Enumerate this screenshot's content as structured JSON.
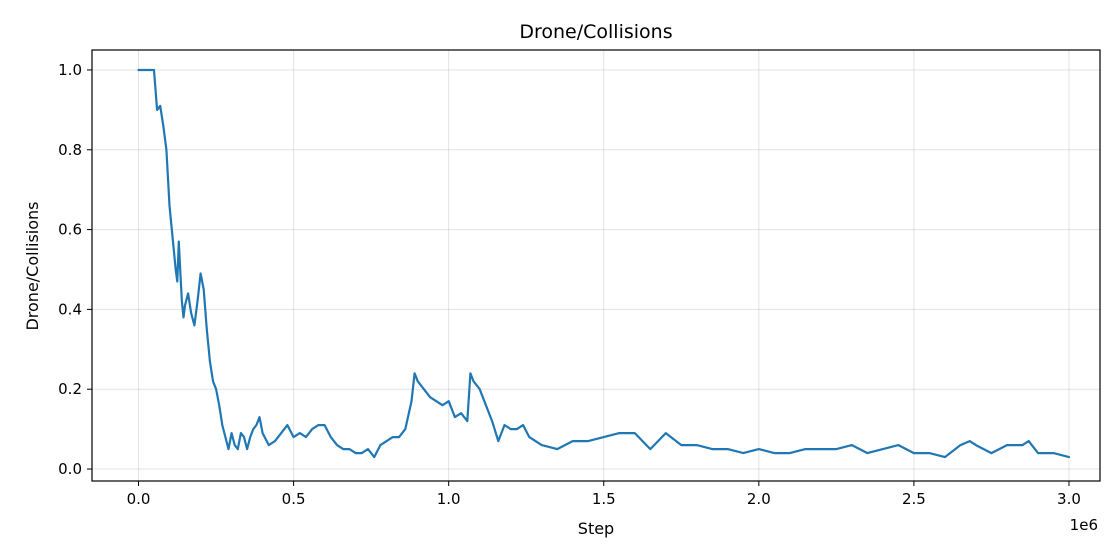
{
  "chart_data": {
    "type": "line",
    "title": "Drone/Collisions",
    "xlabel": "Step",
    "ylabel": "Drone/Collisions",
    "x_offset_label": "1e6",
    "xlim": [
      -0.15,
      3.1
    ],
    "ylim": [
      -0.03,
      1.05
    ],
    "xticks": [
      0.0,
      0.5,
      1.0,
      1.5,
      2.0,
      2.5,
      3.0
    ],
    "xtick_labels": [
      "0.0",
      "0.5",
      "1.0",
      "1.5",
      "2.0",
      "2.5",
      "3.0"
    ],
    "yticks": [
      0.0,
      0.2,
      0.4,
      0.6,
      0.8,
      1.0
    ],
    "ytick_labels": [
      "0.0",
      "0.2",
      "0.4",
      "0.6",
      "0.8",
      "1.0"
    ],
    "grid": true,
    "colors": {
      "series": "#1f77b4"
    },
    "series": [
      {
        "x": [
          0.0,
          0.02,
          0.04,
          0.05,
          0.06,
          0.07,
          0.08,
          0.09,
          0.1,
          0.11,
          0.12,
          0.125,
          0.13,
          0.135,
          0.14,
          0.145,
          0.15,
          0.16,
          0.17,
          0.18,
          0.19,
          0.2,
          0.21,
          0.22,
          0.23,
          0.24,
          0.25,
          0.26,
          0.27,
          0.28,
          0.29,
          0.3,
          0.31,
          0.32,
          0.33,
          0.34,
          0.35,
          0.36,
          0.37,
          0.38,
          0.39,
          0.4,
          0.42,
          0.44,
          0.46,
          0.48,
          0.5,
          0.52,
          0.54,
          0.56,
          0.58,
          0.6,
          0.62,
          0.64,
          0.66,
          0.68,
          0.7,
          0.72,
          0.74,
          0.76,
          0.78,
          0.8,
          0.82,
          0.84,
          0.86,
          0.88,
          0.89,
          0.9,
          0.92,
          0.94,
          0.96,
          0.98,
          1.0,
          1.02,
          1.04,
          1.06,
          1.07,
          1.08,
          1.1,
          1.12,
          1.14,
          1.16,
          1.18,
          1.2,
          1.22,
          1.24,
          1.26,
          1.28,
          1.3,
          1.35,
          1.4,
          1.45,
          1.5,
          1.55,
          1.6,
          1.65,
          1.7,
          1.75,
          1.8,
          1.85,
          1.9,
          1.95,
          2.0,
          2.05,
          2.1,
          2.15,
          2.2,
          2.25,
          2.3,
          2.35,
          2.4,
          2.45,
          2.5,
          2.55,
          2.6,
          2.65,
          2.68,
          2.7,
          2.75,
          2.8,
          2.85,
          2.87,
          2.9,
          2.95,
          3.0
        ],
        "y": [
          1.0,
          1.0,
          1.0,
          1.0,
          0.9,
          0.91,
          0.86,
          0.8,
          0.66,
          0.58,
          0.5,
          0.47,
          0.57,
          0.49,
          0.42,
          0.38,
          0.41,
          0.44,
          0.39,
          0.36,
          0.42,
          0.49,
          0.45,
          0.35,
          0.27,
          0.22,
          0.2,
          0.16,
          0.11,
          0.08,
          0.05,
          0.09,
          0.06,
          0.05,
          0.09,
          0.08,
          0.05,
          0.08,
          0.1,
          0.11,
          0.13,
          0.09,
          0.06,
          0.07,
          0.09,
          0.11,
          0.08,
          0.09,
          0.08,
          0.1,
          0.11,
          0.11,
          0.08,
          0.06,
          0.05,
          0.05,
          0.04,
          0.04,
          0.05,
          0.03,
          0.06,
          0.07,
          0.08,
          0.08,
          0.1,
          0.17,
          0.24,
          0.22,
          0.2,
          0.18,
          0.17,
          0.16,
          0.17,
          0.13,
          0.14,
          0.12,
          0.24,
          0.22,
          0.2,
          0.16,
          0.12,
          0.07,
          0.11,
          0.1,
          0.1,
          0.11,
          0.08,
          0.07,
          0.06,
          0.05,
          0.07,
          0.07,
          0.08,
          0.09,
          0.09,
          0.05,
          0.09,
          0.06,
          0.06,
          0.05,
          0.05,
          0.04,
          0.05,
          0.04,
          0.04,
          0.05,
          0.05,
          0.05,
          0.06,
          0.04,
          0.05,
          0.06,
          0.04,
          0.04,
          0.03,
          0.06,
          0.07,
          0.06,
          0.04,
          0.06,
          0.06,
          0.07,
          0.04,
          0.04,
          0.03
        ]
      }
    ]
  }
}
